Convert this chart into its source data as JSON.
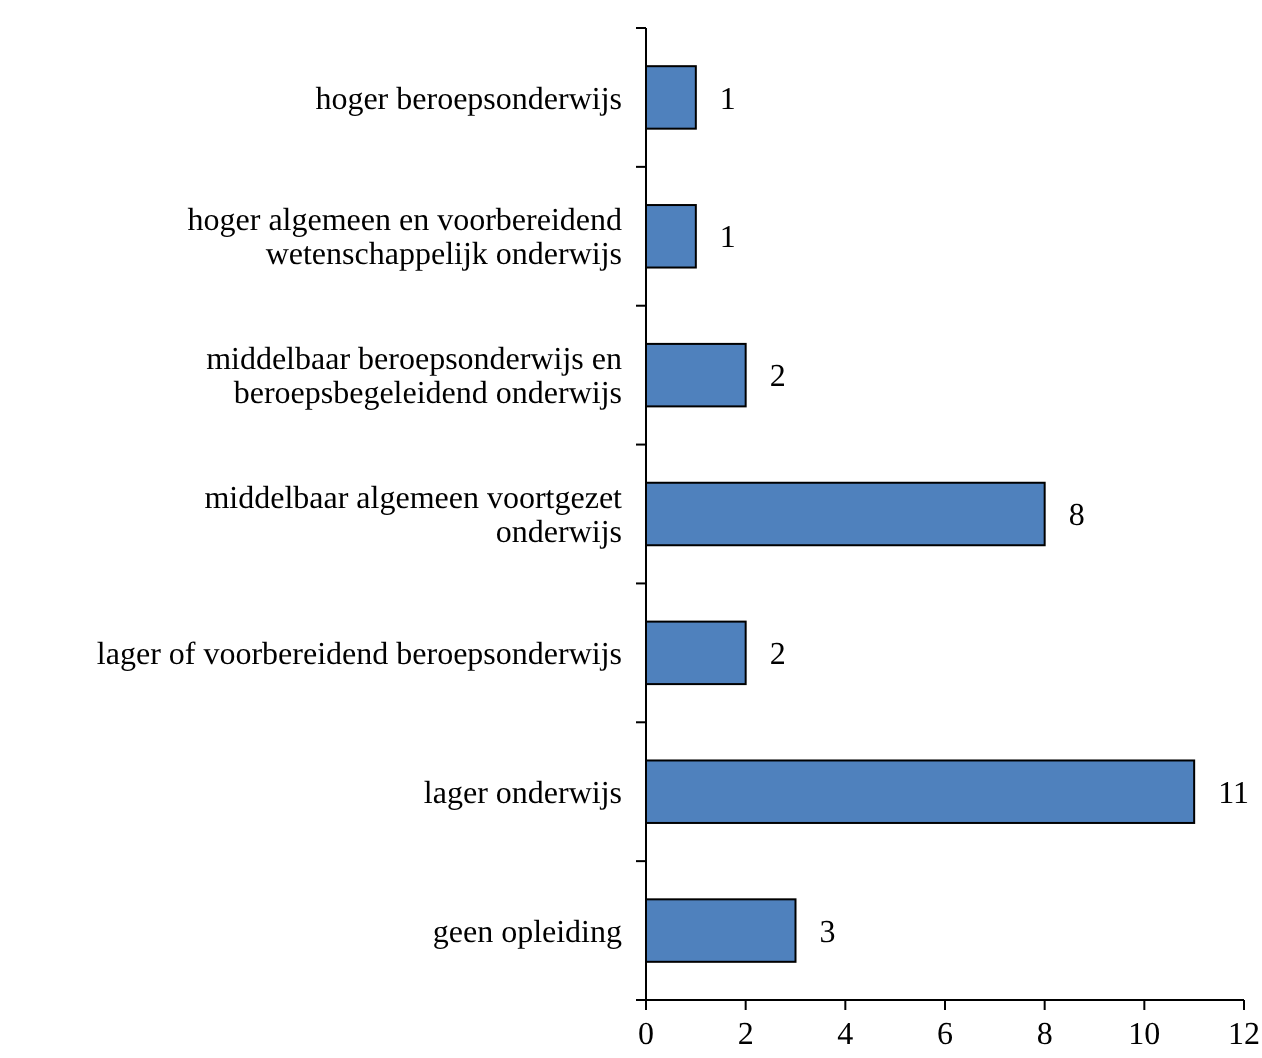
{
  "chart_data": {
    "type": "bar",
    "orientation": "horizontal",
    "categories": [
      "hoger beroepsonderwijs",
      "hoger algemeen en voorbereidend wetenschappelijk onderwijs",
      "middelbaar beroepsonderwijs en beroepsbegeleidend onderwijs",
      "middelbaar algemeen voortgezet onderwijs",
      "lager of voorbereidend beroepsonderwijs",
      "lager onderwijs",
      "geen opleiding"
    ],
    "values": [
      1,
      1,
      2,
      8,
      2,
      11,
      3
    ],
    "color": "#4f81bd",
    "xlim": [
      0,
      12
    ],
    "xticks": [
      0,
      2,
      4,
      6,
      8,
      10,
      12
    ],
    "data_labels": true
  }
}
